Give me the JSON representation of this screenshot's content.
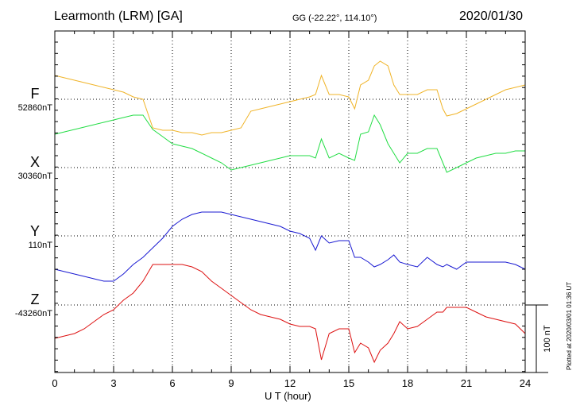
{
  "header": {
    "station": "Learmonth (LRM)  [GA]",
    "coords": "GG (-22.22°, 114.10°)",
    "date": "2020/01/30"
  },
  "footer": {
    "xlabel": "U T (hour)",
    "plotted": "Plotted at 2020/03/01 01:36 UT",
    "scale_label": "100 nT"
  },
  "chart_data": {
    "type": "line",
    "xlabel": "U T (hour)",
    "xlim": [
      0,
      24
    ],
    "xticks": [
      0,
      3,
      6,
      9,
      12,
      15,
      18,
      21,
      24
    ],
    "scale_bar_nT": 100,
    "grid": true,
    "series": [
      {
        "name": "F",
        "color": "#f0b428",
        "baseline_label": "52860nT",
        "baseline": 52860,
        "x": [
          0,
          0.5,
          1,
          1.5,
          2,
          2.5,
          3,
          3.5,
          4,
          4.5,
          5,
          5.5,
          6,
          6.5,
          7,
          7.5,
          8,
          8.5,
          9,
          9.5,
          10,
          10.5,
          11,
          11.5,
          12,
          12.5,
          13,
          13.3,
          13.6,
          14,
          14.5,
          15,
          15.3,
          15.6,
          16,
          16.3,
          16.6,
          17,
          17.3,
          17.6,
          18,
          18.5,
          19,
          19.5,
          19.8,
          20,
          20.5,
          21,
          21.5,
          22,
          22.5,
          23,
          23.5,
          24
        ],
        "y": [
          52870,
          52869,
          52868,
          52867,
          52866,
          52865,
          52864,
          52863,
          52861,
          52860,
          52848,
          52847,
          52847,
          52846,
          52846,
          52845,
          52846,
          52846,
          52847,
          52848,
          52855,
          52856,
          52857,
          52858,
          52859,
          52860,
          52861,
          52862,
          52870,
          52862,
          52862,
          52861,
          52856,
          52866,
          52868,
          52874,
          52876,
          52874,
          52866,
          52862,
          52862,
          52862,
          52864,
          52864,
          52856,
          52853,
          52854,
          52856,
          52858,
          52860,
          52862,
          52864,
          52865,
          52866
        ]
      },
      {
        "name": "X",
        "color": "#22dd44",
        "baseline_label": "30360nT",
        "baseline": 30360,
        "x": [
          0,
          0.5,
          1,
          1.5,
          2,
          2.5,
          3,
          3.5,
          4,
          4.5,
          5,
          5.5,
          6,
          6.5,
          7,
          7.5,
          8,
          8.5,
          9,
          9.5,
          10,
          10.5,
          11,
          11.5,
          12,
          12.5,
          13,
          13.3,
          13.6,
          14,
          14.5,
          15,
          15.3,
          15.6,
          16,
          16.3,
          16.6,
          17,
          17.3,
          17.6,
          18,
          18.5,
          19,
          19.5,
          19.8,
          20,
          20.5,
          21,
          21.5,
          22,
          22.5,
          23,
          23.5,
          24
        ],
        "y": [
          30374,
          30375,
          30376,
          30377,
          30378,
          30379,
          30380,
          30381,
          30382,
          30382,
          30376,
          30373,
          30370,
          30369,
          30368,
          30366,
          30364,
          30362,
          30359,
          30360,
          30361,
          30362,
          30363,
          30364,
          30365,
          30365,
          30365,
          30364,
          30372,
          30364,
          30366,
          30364,
          30363,
          30374,
          30375,
          30382,
          30378,
          30370,
          30366,
          30362,
          30366,
          30366,
          30368,
          30368,
          30362,
          30358,
          30360,
          30362,
          30364,
          30365,
          30366,
          30366,
          30367,
          30367
        ]
      },
      {
        "name": "Y",
        "color": "#1a1ad2",
        "baseline_label": "110nT",
        "baseline": 110,
        "x": [
          0,
          0.5,
          1,
          1.5,
          2,
          2.5,
          3,
          3.5,
          4,
          4.5,
          5,
          5.5,
          6,
          6.5,
          7,
          7.5,
          8,
          8.5,
          9,
          9.5,
          10,
          10.5,
          11,
          11.5,
          12,
          12.5,
          13,
          13.3,
          13.6,
          14,
          14.5,
          15,
          15.3,
          15.6,
          16,
          16.3,
          16.6,
          17,
          17.3,
          17.6,
          18,
          18.5,
          19,
          19.5,
          19.8,
          20,
          20.5,
          21,
          21.5,
          22,
          22.5,
          23,
          23.5,
          24
        ],
        "y": [
          96,
          95,
          94,
          93,
          92,
          91,
          91,
          94,
          98,
          101,
          105,
          109,
          114,
          117,
          119,
          120,
          120,
          120,
          119,
          118,
          117,
          116,
          115,
          114,
          112,
          111,
          109,
          104,
          110,
          107,
          108,
          108,
          101,
          101,
          99,
          97,
          98,
          100,
          102,
          99,
          98,
          97,
          101,
          98,
          97,
          98,
          96,
          99,
          99,
          99,
          99,
          99,
          98,
          96
        ]
      },
      {
        "name": "Z",
        "color": "#dd1111",
        "baseline_label": "-43260nT",
        "baseline": -43260,
        "x": [
          0,
          0.5,
          1,
          1.5,
          2,
          2.5,
          3,
          3.5,
          4,
          4.5,
          5,
          5.5,
          6,
          6.5,
          7,
          7.5,
          8,
          8.5,
          9,
          9.5,
          10,
          10.5,
          11,
          11.5,
          12,
          12.5,
          13,
          13.3,
          13.6,
          14,
          14.5,
          15,
          15.3,
          15.6,
          16,
          16.3,
          16.6,
          17,
          17.3,
          17.6,
          18,
          18.5,
          19,
          19.5,
          19.8,
          20,
          20.5,
          21,
          21.5,
          22,
          22.5,
          23,
          23.5,
          24
        ],
        "y": [
          -43274,
          -43273,
          -43272,
          -43270,
          -43267,
          -43264,
          -43262,
          -43258,
          -43255,
          -43250,
          -43243,
          -43243,
          -43243,
          -43243,
          -43244,
          -43246,
          -43250,
          -43253,
          -43256,
          -43259,
          -43262,
          -43264,
          -43265,
          -43266,
          -43268,
          -43269,
          -43269,
          -43270,
          -43283,
          -43272,
          -43270,
          -43270,
          -43280,
          -43276,
          -43278,
          -43284,
          -43279,
          -43276,
          -43272,
          -43267,
          -43270,
          -43269,
          -43266,
          -43263,
          -43263,
          -43261,
          -43261,
          -43261,
          -43263,
          -43265,
          -43266,
          -43267,
          -43268,
          -43272
        ]
      }
    ]
  }
}
